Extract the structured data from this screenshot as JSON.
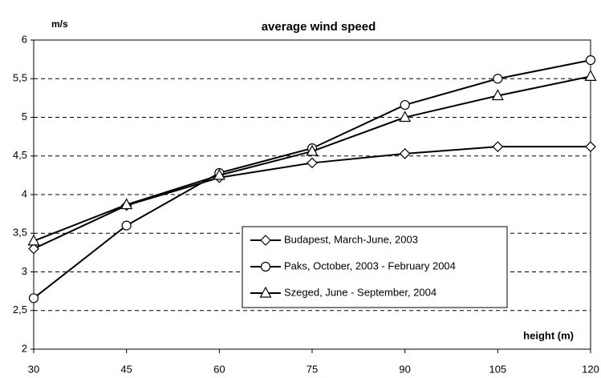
{
  "chart_data": {
    "type": "line",
    "title": "average wind speed",
    "ylabel": "m/s",
    "xlabel": "height  (m)",
    "x": [
      30,
      45,
      60,
      75,
      90,
      105,
      120
    ],
    "xlim": [
      30,
      120
    ],
    "xticks": [
      30,
      45,
      60,
      75,
      90,
      105,
      120
    ],
    "ylim": [
      2,
      6
    ],
    "yticks": [
      2,
      {
        "value": 2.5,
        "label": "2,5"
      },
      3,
      {
        "value": 3.5,
        "label": "3,5"
      },
      4,
      {
        "value": 4.5,
        "label": "4,5"
      },
      5,
      {
        "value": 5.5,
        "label": "5,5"
      },
      6
    ],
    "grid": true,
    "series": [
      {
        "name": "Budapest, March-June, 2003",
        "color": "#000000",
        "marker": "diamond",
        "values": [
          3.3,
          3.86,
          4.22,
          4.41,
          4.53,
          4.62,
          4.62
        ]
      },
      {
        "name": "Paks, October, 2003 - February 2004",
        "color": "#000000",
        "marker": "circle",
        "values": [
          2.66,
          3.6,
          4.28,
          4.6,
          5.16,
          5.5,
          5.74
        ]
      },
      {
        "name": "Szeged, June - September, 2004",
        "color": "#000000",
        "marker": "triangle",
        "values": [
          3.4,
          3.87,
          4.25,
          4.56,
          5.0,
          5.28,
          5.53
        ]
      }
    ]
  }
}
